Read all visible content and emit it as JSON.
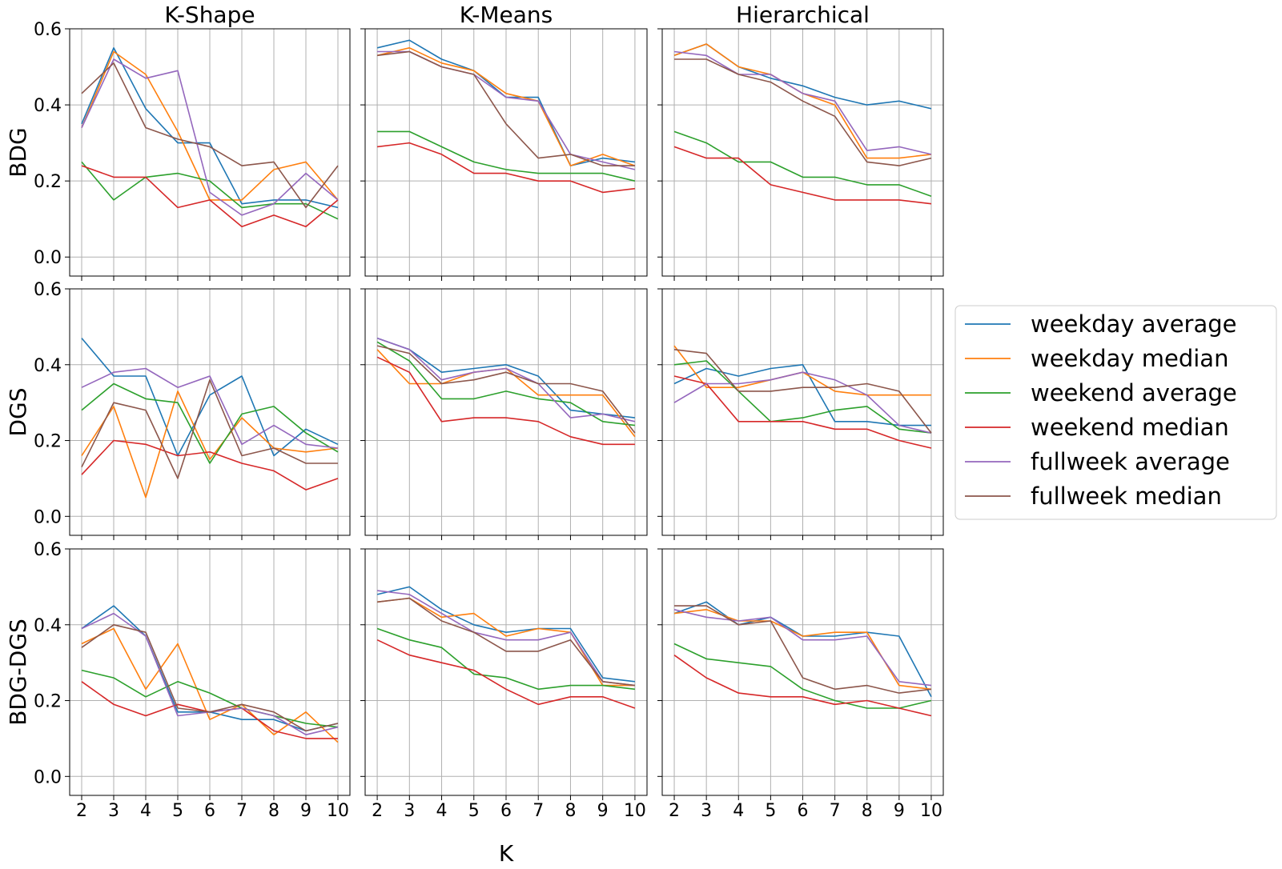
{
  "chart_data": {
    "type": "line",
    "layout": "grid-3x3",
    "x": [
      2,
      3,
      4,
      5,
      6,
      7,
      8,
      9,
      10
    ],
    "xlabel": "K",
    "ylim": [
      -0.05,
      0.6
    ],
    "yticks": [
      0.0,
      0.2,
      0.4,
      0.6
    ],
    "ytick_labels": [
      "0.0",
      "0.2",
      "0.4",
      "0.6"
    ],
    "grid": true,
    "legend_position": "right",
    "columns": [
      "K-Shape",
      "K-Means",
      "Hierarchical"
    ],
    "rows": [
      "BDG",
      "DGS",
      "BDG-DGS"
    ],
    "series_meta": [
      {
        "name": "weekday average",
        "color": "#1f77b4"
      },
      {
        "name": "weekday median",
        "color": "#ff7f0e"
      },
      {
        "name": "weekend average",
        "color": "#2ca02c"
      },
      {
        "name": "weekend median",
        "color": "#d62728"
      },
      {
        "name": "fullweek average",
        "color": "#9467bd"
      },
      {
        "name": "fullweek median",
        "color": "#8c564b"
      }
    ],
    "panels": [
      [
        [
          [
            0.35,
            0.55,
            0.39,
            0.3,
            0.3,
            0.14,
            0.15,
            0.15,
            0.13
          ],
          [
            0.34,
            0.54,
            0.48,
            0.33,
            0.15,
            0.15,
            0.23,
            0.25,
            0.15
          ],
          [
            0.25,
            0.15,
            0.21,
            0.22,
            0.2,
            0.13,
            0.14,
            0.14,
            0.1
          ],
          [
            0.24,
            0.21,
            0.21,
            0.13,
            0.15,
            0.08,
            0.11,
            0.08,
            0.15
          ],
          [
            0.34,
            0.52,
            0.47,
            0.49,
            0.17,
            0.11,
            0.14,
            0.22,
            0.15
          ],
          [
            0.43,
            0.51,
            0.34,
            0.31,
            0.29,
            0.24,
            0.25,
            0.13,
            0.24
          ]
        ],
        [
          [
            0.55,
            0.57,
            0.52,
            0.49,
            0.42,
            0.42,
            0.24,
            0.26,
            0.25
          ],
          [
            0.53,
            0.55,
            0.51,
            0.49,
            0.43,
            0.41,
            0.24,
            0.27,
            0.24
          ],
          [
            0.33,
            0.33,
            0.29,
            0.25,
            0.23,
            0.22,
            0.22,
            0.22,
            0.2
          ],
          [
            0.29,
            0.3,
            0.27,
            0.22,
            0.22,
            0.2,
            0.2,
            0.17,
            0.18
          ],
          [
            0.54,
            0.54,
            0.5,
            0.48,
            0.42,
            0.41,
            0.27,
            0.25,
            0.23
          ],
          [
            0.53,
            0.54,
            0.5,
            0.48,
            0.35,
            0.26,
            0.27,
            0.24,
            0.24
          ]
        ],
        [
          [
            0.53,
            0.56,
            0.5,
            0.47,
            0.45,
            0.42,
            0.4,
            0.41,
            0.39
          ],
          [
            0.53,
            0.56,
            0.5,
            0.48,
            0.43,
            0.4,
            0.26,
            0.26,
            0.27
          ],
          [
            0.33,
            0.3,
            0.25,
            0.25,
            0.21,
            0.21,
            0.19,
            0.19,
            0.16
          ],
          [
            0.29,
            0.26,
            0.26,
            0.19,
            0.17,
            0.15,
            0.15,
            0.15,
            0.14
          ],
          [
            0.54,
            0.53,
            0.48,
            0.48,
            0.43,
            0.41,
            0.28,
            0.29,
            0.27
          ],
          [
            0.52,
            0.52,
            0.48,
            0.46,
            0.41,
            0.37,
            0.25,
            0.24,
            0.26
          ]
        ]
      ],
      [
        [
          [
            0.47,
            0.37,
            0.37,
            0.16,
            0.32,
            0.37,
            0.16,
            0.23,
            0.19
          ],
          [
            0.16,
            0.29,
            0.05,
            0.33,
            0.15,
            0.26,
            0.18,
            0.17,
            0.18
          ],
          [
            0.28,
            0.35,
            0.31,
            0.3,
            0.14,
            0.27,
            0.29,
            0.22,
            0.17
          ],
          [
            0.11,
            0.2,
            0.19,
            0.16,
            0.17,
            0.14,
            0.12,
            0.07,
            0.1
          ],
          [
            0.34,
            0.38,
            0.39,
            0.34,
            0.37,
            0.19,
            0.24,
            0.19,
            0.18
          ],
          [
            0.13,
            0.3,
            0.28,
            0.1,
            0.36,
            0.16,
            0.18,
            0.14,
            0.14
          ]
        ],
        [
          [
            0.47,
            0.44,
            0.38,
            0.39,
            0.4,
            0.37,
            0.28,
            0.27,
            0.26
          ],
          [
            0.44,
            0.35,
            0.35,
            0.38,
            0.39,
            0.32,
            0.32,
            0.32,
            0.21
          ],
          [
            0.46,
            0.41,
            0.31,
            0.31,
            0.33,
            0.31,
            0.3,
            0.25,
            0.24
          ],
          [
            0.42,
            0.38,
            0.25,
            0.26,
            0.26,
            0.25,
            0.21,
            0.19,
            0.19
          ],
          [
            0.47,
            0.44,
            0.36,
            0.38,
            0.39,
            0.35,
            0.26,
            0.27,
            0.25
          ],
          [
            0.45,
            0.43,
            0.35,
            0.36,
            0.38,
            0.35,
            0.35,
            0.33,
            0.22
          ]
        ],
        [
          [
            0.35,
            0.39,
            0.37,
            0.39,
            0.4,
            0.25,
            0.25,
            0.24,
            0.24
          ],
          [
            0.45,
            0.34,
            0.34,
            0.36,
            0.38,
            0.33,
            0.32,
            0.32,
            0.32
          ],
          [
            0.4,
            0.41,
            0.33,
            0.25,
            0.26,
            0.28,
            0.29,
            0.23,
            0.22
          ],
          [
            0.37,
            0.35,
            0.25,
            0.25,
            0.25,
            0.23,
            0.23,
            0.2,
            0.18
          ],
          [
            0.3,
            0.35,
            0.35,
            0.36,
            0.38,
            0.36,
            0.32,
            0.24,
            0.22
          ],
          [
            0.44,
            0.43,
            0.33,
            0.33,
            0.34,
            0.34,
            0.35,
            0.33,
            0.22
          ]
        ]
      ],
      [
        [
          [
            0.39,
            0.45,
            0.37,
            0.17,
            0.17,
            0.15,
            0.15,
            0.12,
            0.14
          ],
          [
            0.35,
            0.39,
            0.23,
            0.35,
            0.15,
            0.19,
            0.11,
            0.17,
            0.09
          ],
          [
            0.28,
            0.26,
            0.21,
            0.25,
            0.22,
            0.18,
            0.16,
            0.14,
            0.13
          ],
          [
            0.25,
            0.19,
            0.16,
            0.19,
            0.17,
            0.18,
            0.12,
            0.1,
            0.1
          ],
          [
            0.39,
            0.43,
            0.37,
            0.16,
            0.17,
            0.18,
            0.16,
            0.11,
            0.13
          ],
          [
            0.34,
            0.4,
            0.38,
            0.18,
            0.17,
            0.19,
            0.17,
            0.12,
            0.14
          ]
        ],
        [
          [
            0.48,
            0.5,
            0.44,
            0.4,
            0.38,
            0.39,
            0.39,
            0.26,
            0.25
          ],
          [
            0.46,
            0.47,
            0.42,
            0.43,
            0.37,
            0.39,
            0.38,
            0.24,
            0.24
          ],
          [
            0.39,
            0.36,
            0.34,
            0.27,
            0.26,
            0.23,
            0.24,
            0.24,
            0.23
          ],
          [
            0.36,
            0.32,
            0.3,
            0.28,
            0.23,
            0.19,
            0.21,
            0.21,
            0.18
          ],
          [
            0.49,
            0.48,
            0.43,
            0.38,
            0.36,
            0.36,
            0.38,
            0.25,
            0.24
          ],
          [
            0.46,
            0.47,
            0.41,
            0.38,
            0.33,
            0.33,
            0.36,
            0.25,
            0.24
          ]
        ],
        [
          [
            0.43,
            0.46,
            0.4,
            0.42,
            0.37,
            0.37,
            0.38,
            0.37,
            0.21
          ],
          [
            0.43,
            0.44,
            0.41,
            0.41,
            0.37,
            0.38,
            0.38,
            0.24,
            0.23
          ],
          [
            0.35,
            0.31,
            0.3,
            0.29,
            0.23,
            0.2,
            0.18,
            0.18,
            0.2
          ],
          [
            0.32,
            0.26,
            0.22,
            0.21,
            0.21,
            0.19,
            0.2,
            0.18,
            0.16
          ],
          [
            0.44,
            0.42,
            0.41,
            0.42,
            0.36,
            0.36,
            0.37,
            0.25,
            0.24
          ],
          [
            0.45,
            0.45,
            0.4,
            0.41,
            0.26,
            0.23,
            0.24,
            0.22,
            0.23
          ]
        ]
      ]
    ]
  }
}
